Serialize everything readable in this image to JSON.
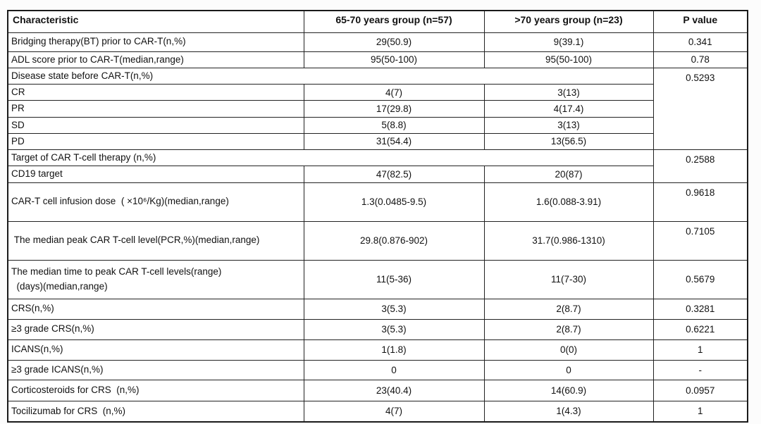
{
  "colors": {
    "border": "#1a1a1a",
    "text": "#111111",
    "background": "#ffffff"
  },
  "table": {
    "columns": [
      "Characteristic",
      "65-70 years group (n=57)",
      ">70 years group (n=23)",
      "P value"
    ],
    "rows": [
      {
        "type": "data",
        "h": 27,
        "label": "Bridging therapy(BT) prior to CAR-T(n,%)",
        "v1": "29(50.9)",
        "v2": "9(39.1)",
        "p": "0.341"
      },
      {
        "type": "data",
        "h": 22,
        "label": "ADL score prior to CAR-T(median,range)",
        "v1": "95(50-100)",
        "v2": "95(50-100)",
        "p": "0.78"
      },
      {
        "type": "section",
        "h": 19,
        "label": "Disease state before CAR-T(n,%)",
        "p": "0.5293",
        "prowspan": 5
      },
      {
        "type": "sub",
        "h": 23,
        "label": "CR",
        "v1": "4(7)",
        "v2": "3(13)"
      },
      {
        "type": "sub",
        "h": 23,
        "label": "PR",
        "v1": "17(29.8)",
        "v2": "4(17.4)"
      },
      {
        "type": "sub",
        "h": 23,
        "label": "SD",
        "v1": "5(8.8)",
        "v2": "3(13)"
      },
      {
        "type": "sub",
        "h": 22,
        "label": "PD",
        "v1": "31(54.4)",
        "v2": "13(56.5)"
      },
      {
        "type": "section",
        "h": 22,
        "label": "Target of CAR T-cell therapy (n,%)",
        "p": "0.2588",
        "prowspan": 2
      },
      {
        "type": "sub",
        "h": 22,
        "label": "CD19 target",
        "v1": "47(82.5)",
        "v2": "20(87)"
      },
      {
        "type": "data",
        "h": 55,
        "label": "CAR-T cell infusion dose  ( ×10⁶/Kg)(median,range)",
        "v1": "1.3(0.0485-9.5)",
        "v2": "1.6(0.088-3.91)",
        "p": "0.9618",
        "ptop": true
      },
      {
        "type": "data",
        "h": 55,
        "label": " The median peak CAR T-cell level(PCR,%)(median,range)",
        "v1": "29.8(0.876-902)",
        "v2": "31.7(0.986-1310)",
        "p": "0.7105",
        "ptop": true
      },
      {
        "type": "data",
        "h": 55,
        "label": "The median time to peak CAR T-cell levels(range)",
        "label2": "  (days)(median,range)",
        "v1": "11(5-36)",
        "v2": "11(7-30)",
        "p": "0.5679"
      },
      {
        "type": "data",
        "h": 29,
        "label": "CRS(n,%)",
        "v1": "3(5.3)",
        "v2": "2(8.7)",
        "p": "0.3281"
      },
      {
        "type": "data",
        "h": 29,
        "label": "≥3 grade CRS(n,%)",
        "v1": "3(5.3)",
        "v2": "2(8.7)",
        "p": "0.6221"
      },
      {
        "type": "data",
        "h": 29,
        "label": "ICANS(n,%)",
        "v1": "1(1.8)",
        "v2": "0(0)",
        "p": "1"
      },
      {
        "type": "data",
        "h": 28,
        "label": "≥3 grade ICANS(n,%)",
        "v1": "0",
        "v2": "0",
        "p": "-"
      },
      {
        "type": "data",
        "h": 30,
        "label": "Corticosteroids for CRS  (n,%)",
        "v1": "23(40.4)",
        "v2": "14(60.9)",
        "p": "0.0957"
      },
      {
        "type": "data",
        "h": 30,
        "label": "Tocilizumab for CRS  (n,%)",
        "v1": "4(7)",
        "v2": "1(4.3)",
        "p": "1"
      }
    ]
  }
}
